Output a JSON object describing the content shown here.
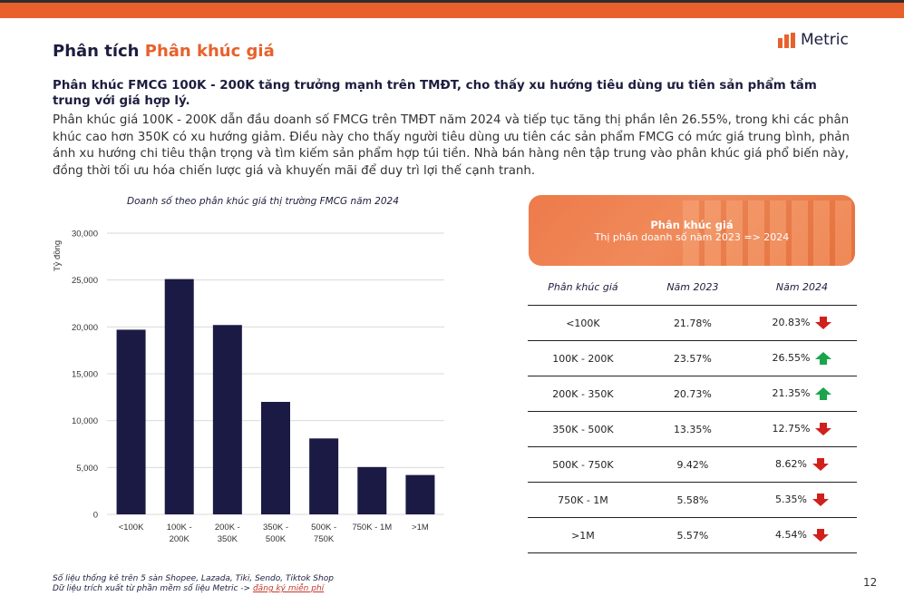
{
  "page": {
    "title_prefix": "Phân tích",
    "title_accent": "Phân khúc giá",
    "brand": "Metric",
    "headline": "Phân khúc FMCG 100K - 200K tăng trưởng mạnh trên TMĐT, cho thấy xu hướng tiêu dùng ưu tiên sản phẩm tầm trung với giá hợp lý.",
    "body": "Phân khúc giá 100K - 200K dẫn đầu doanh số FMCG trên TMĐT năm 2024 và tiếp tục tăng thị phần lên 26.55%, trong khi các phân khúc cao hơn 350K có xu hướng giảm. Điều này cho thấy người tiêu dùng ưu tiên các sản phẩm FMCG có mức giá trung bình, phản ánh xu hướng chi tiêu thận trọng và tìm kiếm sản phẩm hợp túi tiền. Nhà bán hàng nên tập trung vào phân khúc giá phổ biến này, đồng thời tối ưu hóa chiến lược giá và khuyến mãi để duy trì lợi thế cạnh tranh.",
    "page_number": "12"
  },
  "colors": {
    "accent": "#e8612c",
    "navy": "#1d1d3f",
    "up": "#1aa54a",
    "down": "#d0201c"
  },
  "chart_data": {
    "type": "bar",
    "title": "Doanh số theo phân khúc giá thị trường FMCG năm 2024",
    "ylabel": "Tỷ đồng",
    "xlabel": "",
    "categories": [
      [
        "<100K"
      ],
      [
        "100K -",
        "200K"
      ],
      [
        "200K -",
        "350K"
      ],
      [
        "350K -",
        "500K"
      ],
      [
        "500K -",
        "750K"
      ],
      [
        "750K - 1M"
      ],
      [
        ">1M"
      ]
    ],
    "values": [
      19700,
      25100,
      20200,
      12000,
      8100,
      5050,
      4200
    ],
    "ylim": [
      0,
      30000
    ],
    "yticks": [
      0,
      5000,
      10000,
      15000,
      20000,
      25000,
      30000
    ],
    "ytick_labels": [
      "0",
      "5,000",
      "10,000",
      "15,000",
      "20,000",
      "25,000",
      "30,000"
    ],
    "grid": true,
    "bar_color": "#1b1a45"
  },
  "table": {
    "header_title": "Phân khúc giá",
    "header_subtitle": "Thị phần doanh số năm 2023 => 2024",
    "columns": [
      "Phân khúc giá",
      "Năm 2023",
      "Năm 2024"
    ],
    "rows": [
      {
        "segment": "<100K",
        "y2023": "21.78%",
        "y2024": "20.83%",
        "trend": "down"
      },
      {
        "segment": "100K - 200K",
        "y2023": "23.57%",
        "y2024": "26.55%",
        "trend": "up"
      },
      {
        "segment": "200K - 350K",
        "y2023": "20.73%",
        "y2024": "21.35%",
        "trend": "up"
      },
      {
        "segment": "350K - 500K",
        "y2023": "13.35%",
        "y2024": "12.75%",
        "trend": "down"
      },
      {
        "segment": "500K - 750K",
        "y2023": "9.42%",
        "y2024": "8.62%",
        "trend": "down"
      },
      {
        "segment": "750K - 1M",
        "y2023": "5.58%",
        "y2024": "5.35%",
        "trend": "down"
      },
      {
        "segment": ">1M",
        "y2023": "5.57%",
        "y2024": "4.54%",
        "trend": "down"
      }
    ]
  },
  "footnote": {
    "line1": "Số liệu thống kê trên 5 sàn Shopee, Lazada, Tiki, Sendo, Tiktok Shop",
    "line2_prefix": "Dữ liệu trích xuất từ phần mềm số liệu Metric ->",
    "link": "đăng ký miễn phí"
  }
}
